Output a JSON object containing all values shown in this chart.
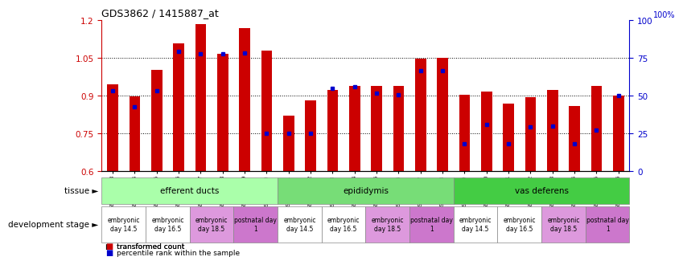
{
  "title": "GDS3862 / 1415887_at",
  "samples": [
    "GSM560923",
    "GSM560924",
    "GSM560925",
    "GSM560926",
    "GSM560927",
    "GSM560928",
    "GSM560929",
    "GSM560930",
    "GSM560931",
    "GSM560932",
    "GSM560933",
    "GSM560934",
    "GSM560935",
    "GSM560936",
    "GSM560937",
    "GSM560938",
    "GSM560939",
    "GSM560940",
    "GSM560941",
    "GSM560942",
    "GSM560943",
    "GSM560944",
    "GSM560945",
    "GSM560946"
  ],
  "bar_heights": [
    0.944,
    0.896,
    1.002,
    1.108,
    1.185,
    1.065,
    1.168,
    1.078,
    0.822,
    0.88,
    0.923,
    0.94,
    0.938,
    0.938,
    1.048,
    1.052,
    0.903,
    0.916,
    0.87,
    0.895,
    0.924,
    0.858,
    0.938,
    0.9
  ],
  "percentile_values": [
    0.92,
    0.855,
    0.92,
    1.075,
    1.065,
    1.065,
    1.068,
    0.75,
    0.75,
    0.75,
    0.93,
    0.935,
    0.91,
    0.905,
    1.0,
    1.0,
    0.71,
    0.785,
    0.71,
    0.775,
    0.78,
    0.71,
    0.765,
    0.9
  ],
  "ylim_min": 0.6,
  "ylim_max": 1.2,
  "yticks": [
    0.6,
    0.75,
    0.9,
    1.05,
    1.2
  ],
  "ytick_labels": [
    "0.6",
    "0.75",
    "0.9",
    "1.05",
    "1.2"
  ],
  "y2ticks": [
    0,
    25,
    50,
    75,
    100
  ],
  "y2tick_labels": [
    "0",
    "25",
    "50",
    "75",
    "100"
  ],
  "bar_color": "#cc0000",
  "percentile_color": "#0000cc",
  "bar_width": 0.5,
  "hgrid_values": [
    0.75,
    0.9,
    1.05
  ],
  "tissues": [
    {
      "label": "efferent ducts",
      "start": 0,
      "end": 7,
      "color": "#aaffaa"
    },
    {
      "label": "epididymis",
      "start": 8,
      "end": 15,
      "color": "#77dd77"
    },
    {
      "label": "vas deferens",
      "start": 16,
      "end": 23,
      "color": "#44cc44"
    }
  ],
  "dev_stages": [
    {
      "label": "embryonic\nday 14.5",
      "start": 0,
      "end": 1,
      "color": "#ffffff"
    },
    {
      "label": "embryonic\nday 16.5",
      "start": 2,
      "end": 3,
      "color": "#ffffff"
    },
    {
      "label": "embryonic\nday 18.5",
      "start": 4,
      "end": 5,
      "color": "#dd99dd"
    },
    {
      "label": "postnatal day\n1",
      "start": 6,
      "end": 7,
      "color": "#cc77cc"
    },
    {
      "label": "embryonic\nday 14.5",
      "start": 8,
      "end": 9,
      "color": "#ffffff"
    },
    {
      "label": "embryonic\nday 16.5",
      "start": 10,
      "end": 11,
      "color": "#ffffff"
    },
    {
      "label": "embryonic\nday 18.5",
      "start": 12,
      "end": 13,
      "color": "#dd99dd"
    },
    {
      "label": "postnatal day\n1",
      "start": 14,
      "end": 15,
      "color": "#cc77cc"
    },
    {
      "label": "embryonic\nday 14.5",
      "start": 16,
      "end": 17,
      "color": "#ffffff"
    },
    {
      "label": "embryonic\nday 16.5",
      "start": 18,
      "end": 19,
      "color": "#ffffff"
    },
    {
      "label": "embryonic\nday 18.5",
      "start": 20,
      "end": 21,
      "color": "#dd99dd"
    },
    {
      "label": "postnatal day\n1",
      "start": 22,
      "end": 23,
      "color": "#cc77cc"
    }
  ],
  "background_color": "#ffffff",
  "tick_color_left": "#cc0000",
  "tick_color_right": "#0000cc",
  "legend_red_label": "transformed count",
  "legend_blue_label": "percentile rank within the sample",
  "tissue_row_label": "tissue",
  "dev_stage_row_label": "development stage"
}
